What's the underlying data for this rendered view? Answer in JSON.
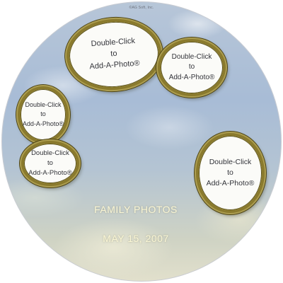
{
  "copyright": "©AG Soft, Inc.",
  "frames": [
    {
      "line1": "Double-Click",
      "line2": "to",
      "line3": "Add-A-Photo®"
    },
    {
      "line1": "Double-Click",
      "line2": "to",
      "line3": "Add-A-Photo®"
    },
    {
      "line1": "Double-Click",
      "line2": "to",
      "line3": "Add-A-Photo®"
    },
    {
      "line1": "Double-Click",
      "line2": "to",
      "line3": "Add-A-Photo®"
    },
    {
      "line1": "Double-Click",
      "line2": "to",
      "line3": "Add-A-Photo®"
    }
  ],
  "title": "FAMILY PHOTOS",
  "date": "MAY 15, 2007",
  "colors": {
    "frame_gold": "#8a7a2d",
    "text_cream": "#fbf7d6",
    "sky_blue": "#a8bcd6"
  }
}
